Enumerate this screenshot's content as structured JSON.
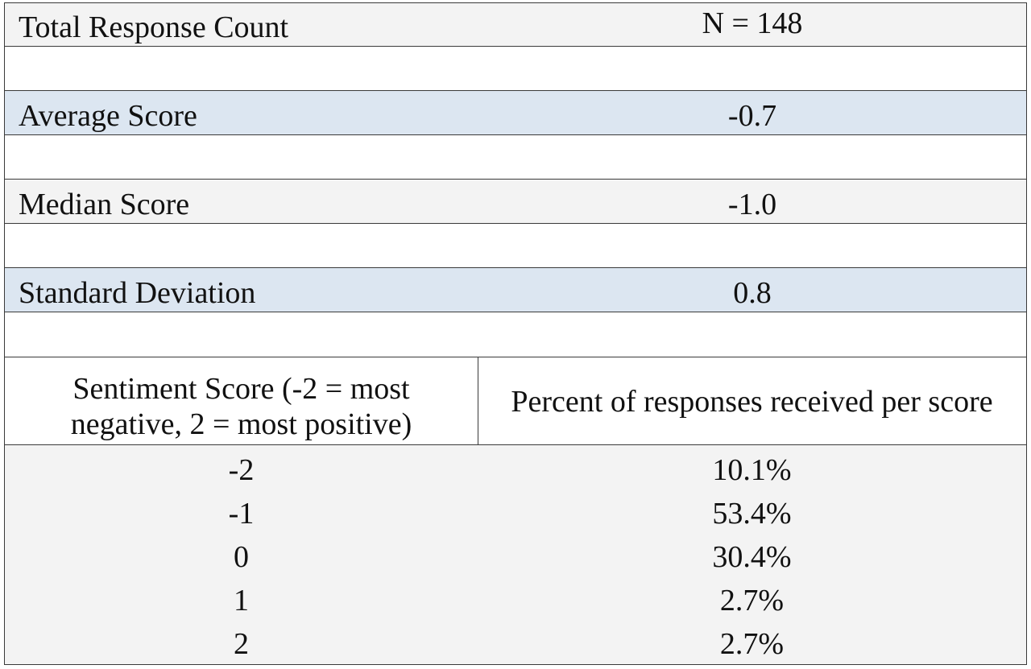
{
  "summary": {
    "total": {
      "label": "Total Response Count",
      "value": "N = 148"
    },
    "average": {
      "label": "Average Score",
      "value": "-0.7"
    },
    "median": {
      "label": "Median Score",
      "value": "-1.0"
    },
    "stddev": {
      "label": "Standard Deviation",
      "value": "0.8"
    }
  },
  "distribution": {
    "header_score": "Sentiment Score (-2 = most negative, 2 = most positive)",
    "header_score_line1": "Sentiment Score (-2 = most",
    "header_score_line2": "negative, 2 = most positive)",
    "header_percent": "Percent of responses received per score",
    "rows": [
      {
        "score": "-2",
        "percent": "10.1%"
      },
      {
        "score": "-1",
        "percent": "53.4%"
      },
      {
        "score": "0",
        "percent": "30.4%"
      },
      {
        "score": "1",
        "percent": "2.7%"
      },
      {
        "score": "2",
        "percent": "2.7%"
      }
    ]
  },
  "colors": {
    "gray_fill": "#f3f3f3",
    "blue_fill": "#dce6f1",
    "border": "#3a3a3a"
  }
}
